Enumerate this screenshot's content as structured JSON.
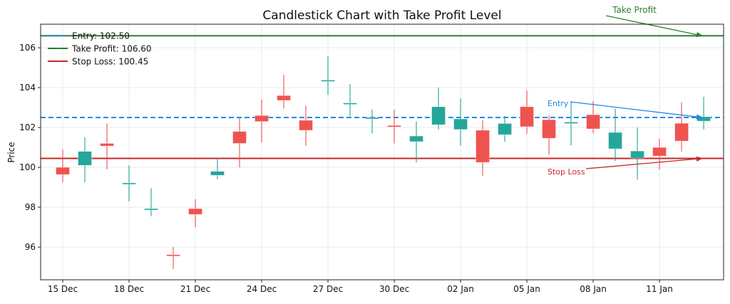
{
  "chart_data": {
    "type": "candlestick",
    "title": "Candlestick Chart with Take Profit Level",
    "xlabel": "",
    "ylabel": "Price",
    "ylim": [
      94.36,
      107.18
    ],
    "grid": true,
    "legend_placement": "top-left",
    "x_tick_labels": [
      "15 Dec",
      "18 Dec",
      "21 Dec",
      "24 Dec",
      "27 Dec",
      "30 Dec",
      "02 Jan",
      "05 Jan",
      "08 Jan",
      "11 Jan"
    ],
    "y_ticks": [
      96,
      98,
      100,
      102,
      104,
      106
    ],
    "dates": [
      "15 Dec",
      "16 Dec",
      "17 Dec",
      "18 Dec",
      "19 Dec",
      "20 Dec",
      "21 Dec",
      "22 Dec",
      "23 Dec",
      "24 Dec",
      "25 Dec",
      "26 Dec",
      "27 Dec",
      "28 Dec",
      "29 Dec",
      "30 Dec",
      "31 Dec",
      "01 Jan",
      "02 Jan",
      "03 Jan",
      "04 Jan",
      "05 Jan",
      "06 Jan",
      "07 Jan",
      "08 Jan",
      "09 Jan",
      "10 Jan",
      "11 Jan",
      "12 Jan",
      "13 Jan"
    ],
    "candles": [
      {
        "o": 100.0,
        "h": 100.9,
        "l": 99.25,
        "c": 99.64
      },
      {
        "o": 100.1,
        "h": 101.5,
        "l": 99.25,
        "c": 100.8
      },
      {
        "o": 101.2,
        "h": 102.2,
        "l": 99.9,
        "c": 101.07
      },
      {
        "o": 99.18,
        "h": 100.1,
        "l": 98.3,
        "c": 99.22
      },
      {
        "o": 97.88,
        "h": 98.95,
        "l": 97.55,
        "c": 97.93
      },
      {
        "o": 95.62,
        "h": 96.0,
        "l": 94.9,
        "c": 95.58
      },
      {
        "o": 97.93,
        "h": 98.4,
        "l": 97.0,
        "c": 97.64
      },
      {
        "o": 99.6,
        "h": 100.45,
        "l": 99.4,
        "c": 99.8
      },
      {
        "o": 101.8,
        "h": 102.5,
        "l": 100.0,
        "c": 101.2
      },
      {
        "o": 102.6,
        "h": 103.4,
        "l": 101.25,
        "c": 102.3
      },
      {
        "o": 103.6,
        "h": 104.64,
        "l": 102.96,
        "c": 103.36
      },
      {
        "o": 102.36,
        "h": 103.1,
        "l": 101.07,
        "c": 101.86
      },
      {
        "o": 104.33,
        "h": 105.57,
        "l": 103.64,
        "c": 104.38
      },
      {
        "o": 103.17,
        "h": 104.18,
        "l": 102.57,
        "c": 103.23
      },
      {
        "o": 102.45,
        "h": 102.9,
        "l": 101.7,
        "c": 102.5
      },
      {
        "o": 102.1,
        "h": 102.9,
        "l": 101.2,
        "c": 102.04
      },
      {
        "o": 101.29,
        "h": 102.3,
        "l": 100.25,
        "c": 101.57
      },
      {
        "o": 102.14,
        "h": 104.0,
        "l": 101.9,
        "c": 103.04
      },
      {
        "o": 101.9,
        "h": 103.46,
        "l": 101.1,
        "c": 102.43
      },
      {
        "o": 101.86,
        "h": 102.36,
        "l": 99.57,
        "c": 100.25
      },
      {
        "o": 101.64,
        "h": 102.57,
        "l": 101.29,
        "c": 102.2
      },
      {
        "o": 103.04,
        "h": 103.86,
        "l": 101.68,
        "c": 102.04
      },
      {
        "o": 102.39,
        "h": 102.6,
        "l": 100.64,
        "c": 101.46
      },
      {
        "o": 102.2,
        "h": 103.29,
        "l": 101.1,
        "c": 102.27
      },
      {
        "o": 102.64,
        "h": 103.32,
        "l": 101.71,
        "c": 101.93
      },
      {
        "o": 100.93,
        "h": 102.93,
        "l": 100.32,
        "c": 101.75
      },
      {
        "o": 100.46,
        "h": 102.0,
        "l": 99.39,
        "c": 100.82
      },
      {
        "o": 101.0,
        "h": 101.43,
        "l": 99.89,
        "c": 100.57
      },
      {
        "o": 102.21,
        "h": 103.25,
        "l": 100.79,
        "c": 101.32
      },
      {
        "o": 102.32,
        "h": 103.54,
        "l": 101.89,
        "c": 102.54
      }
    ],
    "levels": [
      {
        "key": "entry",
        "legend": "Entry: 102.50",
        "value": 102.5,
        "color": "#1e88e5",
        "style": "dashed",
        "annotation": "Entry"
      },
      {
        "key": "tp",
        "legend": "Take Profit: 106.60",
        "value": 106.6,
        "color": "#2e7d32",
        "style": "solid",
        "annotation": "Take Profit"
      },
      {
        "key": "sl",
        "legend": "Stop Loss: 100.45",
        "value": 100.45,
        "color": "#c62828",
        "style": "solid",
        "annotation": "Stop Loss"
      }
    ],
    "colors": {
      "up": "#26a69a",
      "down": "#ef5350"
    }
  }
}
